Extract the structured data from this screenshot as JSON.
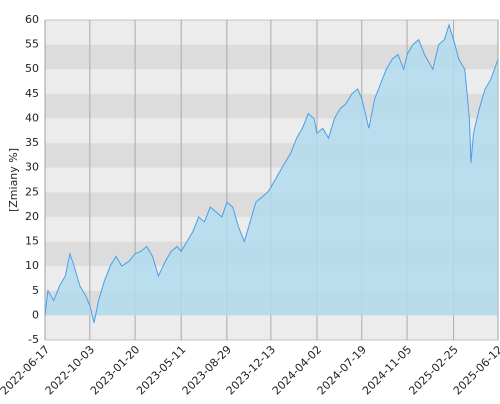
{
  "chart_data": {
    "type": "area",
    "y_label": "[Zmiany %]",
    "x": [
      "2022-06-17",
      "2022-06-24",
      "2022-07-08",
      "2022-07-22",
      "2022-08-05",
      "2022-08-16",
      "2022-08-26",
      "2022-09-09",
      "2022-09-23",
      "2022-10-03",
      "2022-10-13",
      "2022-10-24",
      "2022-11-07",
      "2022-11-21",
      "2022-12-05",
      "2022-12-19",
      "2023-01-05",
      "2023-01-20",
      "2023-02-03",
      "2023-02-17",
      "2023-03-03",
      "2023-03-17",
      "2023-04-03",
      "2023-04-17",
      "2023-05-01",
      "2023-05-11",
      "2023-05-25",
      "2023-06-08",
      "2023-06-22",
      "2023-07-06",
      "2023-07-20",
      "2023-08-03",
      "2023-08-17",
      "2023-08-29",
      "2023-09-12",
      "2023-09-26",
      "2023-10-10",
      "2023-10-24",
      "2023-11-07",
      "2023-11-21",
      "2023-12-05",
      "2023-12-13",
      "2024-01-02",
      "2024-01-16",
      "2024-01-30",
      "2024-02-13",
      "2024-02-27",
      "2024-03-12",
      "2024-03-26",
      "2024-04-02",
      "2024-04-16",
      "2024-04-30",
      "2024-05-14",
      "2024-05-28",
      "2024-06-11",
      "2024-06-25",
      "2024-07-09",
      "2024-07-19",
      "2024-08-05",
      "2024-08-19",
      "2024-09-02",
      "2024-09-16",
      "2024-09-30",
      "2024-10-14",
      "2024-10-28",
      "2024-11-05",
      "2024-11-19",
      "2024-12-03",
      "2024-12-17",
      "2025-01-06",
      "2025-01-20",
      "2025-02-03",
      "2025-02-14",
      "2025-02-25",
      "2025-03-10",
      "2025-03-24",
      "2025-04-04",
      "2025-04-08",
      "2025-04-14",
      "2025-04-28",
      "2025-05-12",
      "2025-05-26",
      "2025-06-12"
    ],
    "values": [
      0,
      5,
      3,
      6,
      8,
      12.5,
      10,
      6,
      4,
      2,
      -1.5,
      3,
      7,
      10,
      12,
      10,
      11,
      12.5,
      13,
      14,
      12,
      8,
      11,
      13,
      14,
      13,
      15,
      17,
      20,
      19,
      22,
      21,
      20,
      23,
      22,
      18,
      15,
      19,
      23,
      24,
      25,
      26,
      29,
      31,
      33,
      36,
      38,
      41,
      40,
      37,
      38,
      36,
      40,
      42,
      43,
      45,
      46,
      44,
      38,
      44,
      47,
      50,
      52,
      53,
      50,
      53,
      55,
      56,
      53,
      50,
      55,
      56,
      59,
      56,
      52,
      50,
      40,
      31,
      37,
      42,
      46,
      48,
      52
    ],
    "color": "#4a9ee8",
    "fill": "#b3dcee",
    "xlim": [
      "2022-06-17",
      "2025-06-12"
    ],
    "xticks": [
      "2022-06-17",
      "2022-10-03",
      "2023-01-20",
      "2023-05-11",
      "2023-08-29",
      "2023-12-13",
      "2024-04-02",
      "2024-07-19",
      "2024-11-05",
      "2025-02-25",
      "2025-06-12"
    ],
    "ylim": [
      -5,
      60
    ],
    "yticks": [
      -5,
      0,
      5,
      10,
      15,
      20,
      25,
      30,
      35,
      40,
      45,
      50,
      55,
      60
    ],
    "grid": true
  }
}
